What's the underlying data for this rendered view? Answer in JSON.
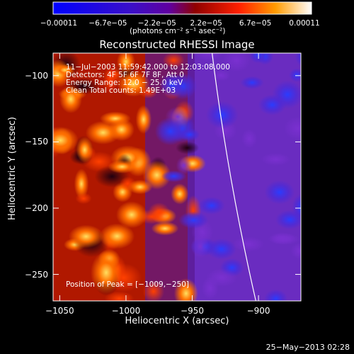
{
  "chart_data": {
    "type": "heatmap",
    "title": "Reconstructed RHESSI Image",
    "xlabel": "Heliocentric X (arcsec)",
    "ylabel": "Heliocentric Y (arcsec)",
    "xlim": [
      -1055,
      -868
    ],
    "ylim": [
      -270,
      -83
    ],
    "x_ticks": [
      -1050,
      -1000,
      -950,
      -900
    ],
    "x_tick_labels": [
      "−1050",
      "−1000",
      "−950",
      "−900"
    ],
    "y_ticks": [
      -100,
      -150,
      -200,
      -250
    ],
    "y_tick_labels": [
      "−100",
      "−150",
      "−200",
      "−250"
    ],
    "colorbar": {
      "range": [
        -0.00011,
        0.00011
      ],
      "tick_labels": [
        "−0.00011",
        "−6.7e−05",
        "−2.2e−05",
        "2.2e−05",
        "6.7e−05",
        "0.00011"
      ],
      "units": "(photons cm⁻² s⁻¹ asec⁻²)"
    },
    "annotations": {
      "time_range": "11−Jul−2003 11:59:42.000 to 12:03:08.000",
      "detectors": "Detectors: 4F 5F 6F 7F 8F, Att 0",
      "energy_range": "Energy Range: 12.0 − 25.0 keV",
      "clean_counts": "Clean    Total counts: 1.49E+03",
      "peak_position": "Position of Peak = [−1009,−250]"
    },
    "limb_curve": {
      "x_top": -935,
      "x_bottom": -902
    },
    "plot_date": "25−May−2013 02:28",
    "color_scale": [
      "#0000ff",
      "#5a00a8",
      "#800000",
      "#ff2000",
      "#ff9b00",
      "#ffffff"
    ]
  }
}
